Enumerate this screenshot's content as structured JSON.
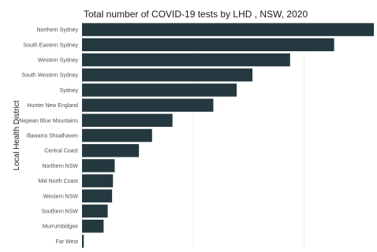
{
  "chart_data": {
    "type": "bar",
    "orientation": "horizontal",
    "title": "Total number of COVID-19 tests by LHD , NSW, 2020",
    "xlabel": "",
    "ylabel": "Local Health District",
    "categories": [
      "Northern Sydney",
      "South Eastern Sydney",
      "Western Sydney",
      "South Western Sydney",
      "Sydney",
      "Hunter New England",
      "Nepean Blue Mountains",
      "Illawarra Shoalhaven",
      "Central Coast",
      "Northern NSW",
      "Mid North Coast",
      "Western NSW",
      "Southern NSW",
      "Murrumbidgee",
      "Far West"
    ],
    "values": [
      1000,
      864,
      713,
      584,
      530,
      450,
      310,
      240,
      195,
      112,
      106,
      103,
      88,
      74,
      6
    ],
    "grid": true,
    "bar_color": "#25383f"
  }
}
